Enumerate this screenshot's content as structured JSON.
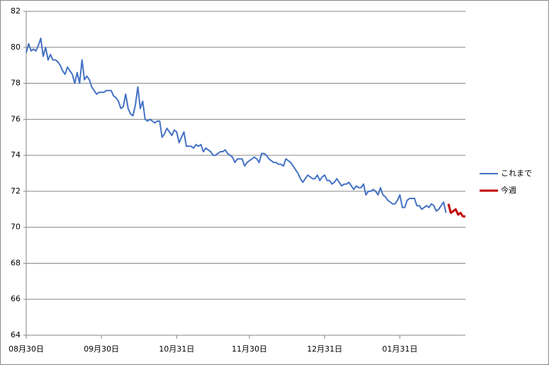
{
  "chart_data": {
    "type": "line",
    "categories": [
      "08月30日",
      null,
      null,
      null,
      null,
      null,
      null,
      null,
      null,
      null,
      null,
      null,
      null,
      null,
      null,
      null,
      null,
      null,
      null,
      null,
      null,
      null,
      null,
      null,
      null,
      null,
      null,
      null,
      null,
      null,
      null,
      "09月30日",
      null,
      null,
      null,
      null,
      null,
      null,
      null,
      null,
      null,
      null,
      null,
      null,
      null,
      null,
      null,
      null,
      null,
      null,
      null,
      null,
      null,
      null,
      null,
      null,
      null,
      null,
      null,
      null,
      null,
      null,
      "10月31日",
      null,
      null,
      null,
      null,
      null,
      null,
      null,
      null,
      null,
      null,
      null,
      null,
      null,
      null,
      null,
      null,
      null,
      null,
      null,
      null,
      null,
      null,
      null,
      null,
      null,
      null,
      null,
      null,
      null,
      "11月30日",
      null,
      null,
      null,
      null,
      null,
      null,
      null,
      null,
      null,
      null,
      null,
      null,
      null,
      null,
      null,
      null,
      null,
      null,
      null,
      null,
      null,
      null,
      null,
      null,
      null,
      null,
      null,
      null,
      null,
      null,
      "12月31日",
      null,
      null,
      null,
      null,
      null,
      null,
      null,
      null,
      null,
      null,
      null,
      null,
      null,
      null,
      null,
      null,
      null,
      null,
      null,
      null,
      null,
      null,
      null,
      null,
      null,
      null,
      null,
      null,
      null,
      null,
      "01月31日",
      null,
      null,
      null,
      null,
      null,
      null,
      null,
      null,
      null,
      null,
      null,
      null,
      null,
      null,
      null,
      null,
      null,
      null,
      null,
      null,
      null,
      null,
      null,
      null,
      null,
      null,
      null
    ],
    "series": [
      {
        "name": "これまで",
        "color": "#4472c4",
        "values": [
          79.7,
          80.2,
          79.8,
          79.9,
          79.8,
          80.1,
          80.5,
          79.5,
          80.0,
          79.3,
          79.6,
          79.3,
          79.3,
          79.2,
          79.0,
          78.7,
          78.5,
          78.9,
          78.7,
          78.5,
          78.0,
          78.6,
          78.0,
          79.3,
          78.2,
          78.4,
          78.2,
          77.8,
          77.6,
          77.4,
          77.5,
          77.5,
          77.5,
          77.6,
          77.6,
          77.6,
          77.3,
          77.2,
          77.0,
          76.6,
          76.7,
          77.4,
          76.6,
          76.3,
          76.2,
          76.8,
          77.8,
          76.6,
          77.0,
          76.0,
          75.9,
          76.0,
          75.9,
          75.8,
          75.9,
          75.9,
          75.0,
          75.2,
          75.5,
          75.3,
          75.1,
          75.4,
          75.3,
          74.7,
          75.0,
          75.3,
          74.5,
          74.5,
          74.5,
          74.4,
          74.6,
          74.5,
          74.6,
          74.2,
          74.4,
          74.3,
          74.2,
          74.0,
          74.0,
          74.1,
          74.2,
          74.2,
          74.3,
          74.1,
          74.0,
          73.9,
          73.6,
          73.8,
          73.8,
          73.8,
          73.4,
          73.6,
          73.7,
          73.8,
          73.9,
          73.8,
          73.6,
          74.1,
          74.1,
          74.0,
          73.8,
          73.7,
          73.6,
          73.6,
          73.5,
          73.5,
          73.4,
          73.8,
          73.7,
          73.6,
          73.4,
          73.2,
          73.0,
          72.7,
          72.5,
          72.7,
          72.9,
          72.8,
          72.7,
          72.7,
          72.9,
          72.6,
          72.8,
          72.9,
          72.6,
          72.6,
          72.4,
          72.5,
          72.7,
          72.5,
          72.3,
          72.4,
          72.4,
          72.5,
          72.3,
          72.1,
          72.3,
          72.2,
          72.2,
          72.4,
          71.8,
          72.0,
          72.0,
          72.1,
          72.0,
          71.8,
          72.2,
          71.8,
          71.7,
          71.5,
          71.4,
          71.3,
          71.3,
          71.5,
          71.8,
          71.1,
          71.1,
          71.5,
          71.6,
          71.6,
          71.6,
          71.2,
          71.2,
          71.0,
          71.1,
          71.2,
          71.1,
          71.3,
          71.2,
          70.9,
          71.0,
          71.2,
          71.4,
          70.8,
          null,
          null,
          null,
          null,
          null,
          null,
          null,
          null
        ]
      },
      {
        "name": "今週",
        "color": "#c00000",
        "values": [
          null,
          null,
          null,
          null,
          null,
          null,
          null,
          null,
          null,
          null,
          null,
          null,
          null,
          null,
          null,
          null,
          null,
          null,
          null,
          null,
          null,
          null,
          null,
          null,
          null,
          null,
          null,
          null,
          null,
          null,
          null,
          null,
          null,
          null,
          null,
          null,
          null,
          null,
          null,
          null,
          null,
          null,
          null,
          null,
          null,
          null,
          null,
          null,
          null,
          null,
          null,
          null,
          null,
          null,
          null,
          null,
          null,
          null,
          null,
          null,
          null,
          null,
          null,
          null,
          null,
          null,
          null,
          null,
          null,
          null,
          null,
          null,
          null,
          null,
          null,
          null,
          null,
          null,
          null,
          null,
          null,
          null,
          null,
          null,
          null,
          null,
          null,
          null,
          null,
          null,
          null,
          null,
          null,
          null,
          null,
          null,
          null,
          null,
          null,
          null,
          null,
          null,
          null,
          null,
          null,
          null,
          null,
          null,
          null,
          null,
          null,
          null,
          null,
          null,
          null,
          null,
          null,
          null,
          null,
          null,
          null,
          null,
          null,
          null,
          null,
          null,
          null,
          null,
          null,
          null,
          null,
          null,
          null,
          null,
          null,
          null,
          null,
          null,
          null,
          null,
          null,
          null,
          null,
          null,
          null,
          null,
          null,
          null,
          null,
          null,
          null,
          null,
          null,
          null,
          null,
          null,
          null,
          null,
          null,
          null,
          null,
          null,
          null,
          null,
          null,
          null,
          null,
          null,
          null,
          null,
          null,
          null,
          null,
          null,
          71.3,
          70.8,
          70.9,
          71.0,
          70.7,
          70.8,
          70.6,
          70.6
        ]
      }
    ],
    "ylim": [
      64,
      82
    ],
    "yticks": [
      64,
      66,
      68,
      70,
      72,
      74,
      76,
      78,
      80,
      82
    ],
    "grid": true,
    "legend": "right"
  }
}
